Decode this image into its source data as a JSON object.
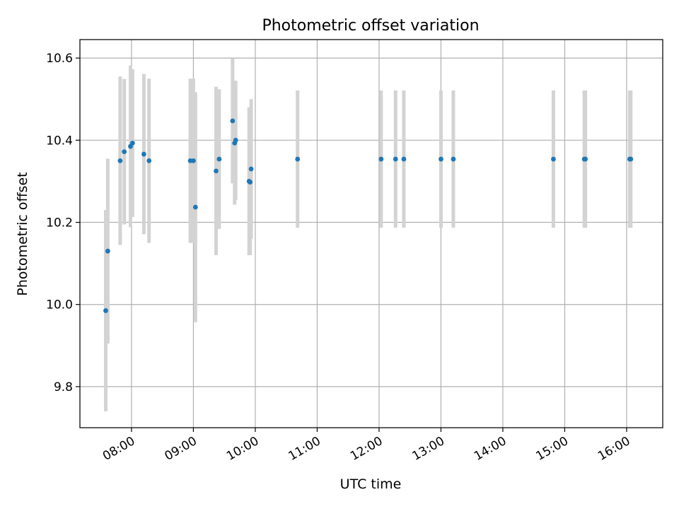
{
  "chart_data": {
    "type": "scatter",
    "title": "Photometric offset variation",
    "xlabel": "UTC time",
    "ylabel": "Photometric offset",
    "x_axis_type": "time",
    "xlim": [
      "07:10",
      "16:35"
    ],
    "ylim": [
      9.7,
      10.645
    ],
    "grid": true,
    "xticks": [
      "08:00",
      "09:00",
      "10:00",
      "11:00",
      "12:00",
      "13:00",
      "14:00",
      "15:00",
      "16:00"
    ],
    "yticks": [
      9.8,
      10.0,
      10.2,
      10.4,
      10.6
    ],
    "colors": {
      "point": "#1f77b4",
      "errorbar": "#d3d3d3",
      "grid": "#b0b0b0"
    },
    "points": [
      {
        "x": "07:35",
        "y": 9.985,
        "err_low": 0.245,
        "err_high": 0.245
      },
      {
        "x": "07:37",
        "y": 10.13,
        "err_low": 0.225,
        "err_high": 0.225
      },
      {
        "x": "07:49",
        "y": 10.35,
        "err_low": 0.205,
        "err_high": 0.205
      },
      {
        "x": "07:53",
        "y": 10.372,
        "err_low": 0.177,
        "err_high": 0.177
      },
      {
        "x": "07:59",
        "y": 10.385,
        "err_low": 0.197,
        "err_high": 0.197
      },
      {
        "x": "08:01",
        "y": 10.393,
        "err_low": 0.18,
        "err_high": 0.18
      },
      {
        "x": "08:12",
        "y": 10.366,
        "err_low": 0.195,
        "err_high": 0.195
      },
      {
        "x": "08:17",
        "y": 10.35,
        "err_low": 0.2,
        "err_high": 0.2
      },
      {
        "x": "08:57",
        "y": 10.35,
        "err_low": 0.2,
        "err_high": 0.2
      },
      {
        "x": "09:00",
        "y": 10.35,
        "err_low": 0.2,
        "err_high": 0.2
      },
      {
        "x": "09:02",
        "y": 10.237,
        "err_low": 0.28,
        "err_high": 0.28
      },
      {
        "x": "09:22",
        "y": 10.325,
        "err_low": 0.205,
        "err_high": 0.205
      },
      {
        "x": "09:25",
        "y": 10.354,
        "err_low": 0.17,
        "err_high": 0.17
      },
      {
        "x": "09:38",
        "y": 10.447,
        "err_low": 0.152,
        "err_high": 0.152
      },
      {
        "x": "09:40",
        "y": 10.393,
        "err_low": 0.15,
        "err_high": 0.15
      },
      {
        "x": "09:41",
        "y": 10.4,
        "err_low": 0.145,
        "err_high": 0.145
      },
      {
        "x": "09:54",
        "y": 10.3,
        "err_low": 0.18,
        "err_high": 0.18
      },
      {
        "x": "09:55",
        "y": 10.298,
        "err_low": 0.178,
        "err_high": 0.178
      },
      {
        "x": "09:56",
        "y": 10.33,
        "err_low": 0.17,
        "err_high": 0.17
      },
      {
        "x": "10:41",
        "y": 10.354,
        "err_low": 0.167,
        "err_high": 0.167
      },
      {
        "x": "12:02",
        "y": 10.354,
        "err_low": 0.167,
        "err_high": 0.167
      },
      {
        "x": "12:16",
        "y": 10.354,
        "err_low": 0.167,
        "err_high": 0.167
      },
      {
        "x": "12:24",
        "y": 10.354,
        "err_low": 0.167,
        "err_high": 0.167
      },
      {
        "x": "13:00",
        "y": 10.354,
        "err_low": 0.167,
        "err_high": 0.167
      },
      {
        "x": "13:12",
        "y": 10.354,
        "err_low": 0.167,
        "err_high": 0.167
      },
      {
        "x": "14:49",
        "y": 10.354,
        "err_low": 0.167,
        "err_high": 0.167
      },
      {
        "x": "15:19",
        "y": 10.354,
        "err_low": 0.167,
        "err_high": 0.167
      },
      {
        "x": "15:20",
        "y": 10.354,
        "err_low": 0.167,
        "err_high": 0.167
      },
      {
        "x": "16:03",
        "y": 10.354,
        "err_low": 0.167,
        "err_high": 0.167
      },
      {
        "x": "16:04",
        "y": 10.354,
        "err_low": 0.167,
        "err_high": 0.167
      }
    ]
  }
}
